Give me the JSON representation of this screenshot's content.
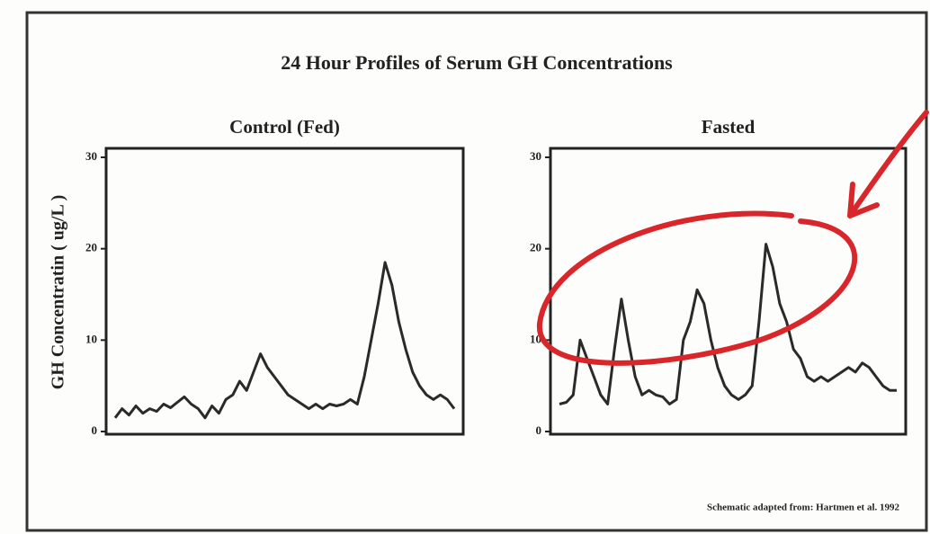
{
  "title": "24 Hour Profiles of Serum GH Concentrations",
  "y_label": "GH Concentratin ( ug/L )",
  "source_note": "Schematic adapted from: Hartmen et al. 1992",
  "chart_data": [
    {
      "type": "line",
      "title": "Control (Fed)",
      "color": "#2a2a2a",
      "ylim": [
        0,
        30
      ],
      "yticks": [
        0,
        10,
        20,
        30
      ],
      "values": [
        1.5,
        2.5,
        1.8,
        2.8,
        2,
        2.5,
        2.2,
        3,
        2.6,
        3.2,
        3.8,
        3,
        2.5,
        1.5,
        2.8,
        2,
        3.5,
        4,
        5.5,
        4.5,
        6.5,
        8.5,
        7,
        6,
        5,
        4,
        3.5,
        3,
        2.5,
        3,
        2.5,
        3,
        2.8,
        3,
        3.5,
        3,
        6,
        10,
        14,
        18.5,
        16,
        12,
        9,
        6.5,
        5,
        4,
        3.5,
        4,
        3.5,
        2.5
      ]
    },
    {
      "type": "line",
      "title": "Fasted",
      "color": "#2a2a2a",
      "ylim": [
        0,
        30
      ],
      "yticks": [
        0,
        10,
        20,
        30
      ],
      "values": [
        3,
        3.2,
        4,
        10,
        8,
        6,
        4,
        3,
        9,
        14.5,
        10,
        6,
        4,
        4.5,
        4,
        3.8,
        3,
        3.5,
        10,
        12,
        15.5,
        14,
        10,
        7,
        5,
        4,
        3.5,
        4,
        5,
        12,
        20.5,
        18,
        14,
        12,
        9,
        8,
        6,
        5.5,
        6,
        5.5,
        6,
        6.5,
        7,
        6.5,
        7.5,
        7,
        6,
        5,
        4.5,
        4.5
      ]
    }
  ]
}
